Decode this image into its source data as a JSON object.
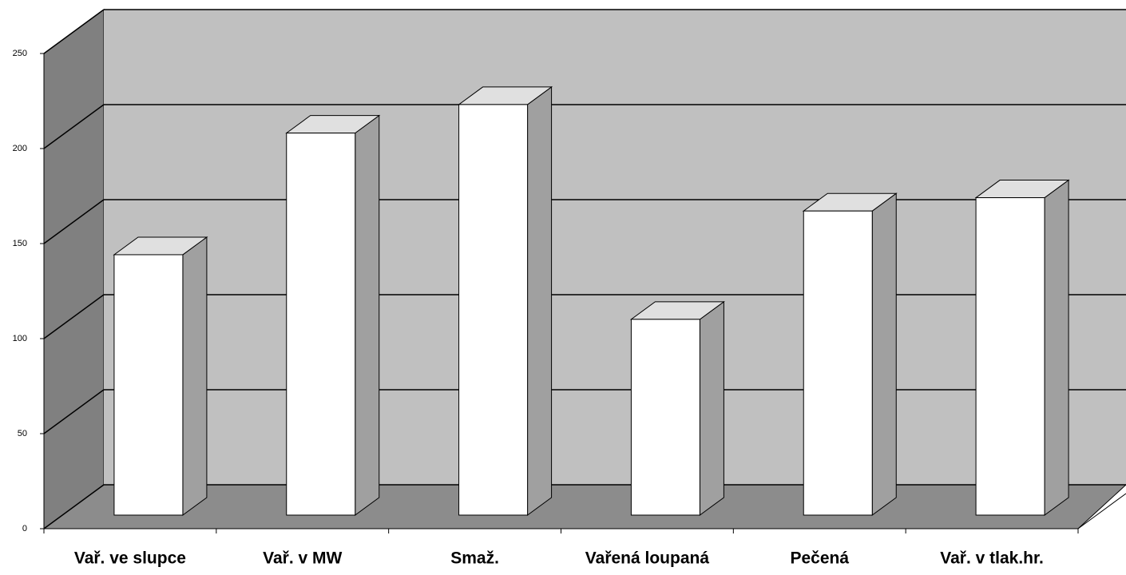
{
  "chart_data": {
    "type": "bar3d",
    "categories": [
      "Vař. ve slupce",
      "Vař. v MW",
      "Smaž.",
      "Vařená loupaná",
      "Pečená",
      "Vař. v tlak.hr."
    ],
    "values": [
      137,
      201,
      216,
      103,
      160,
      167
    ],
    "color": "#ffffff",
    "ylim": [
      0,
      250
    ],
    "yticks": [
      0,
      50,
      100,
      150,
      200,
      250
    ],
    "grid": true
  }
}
